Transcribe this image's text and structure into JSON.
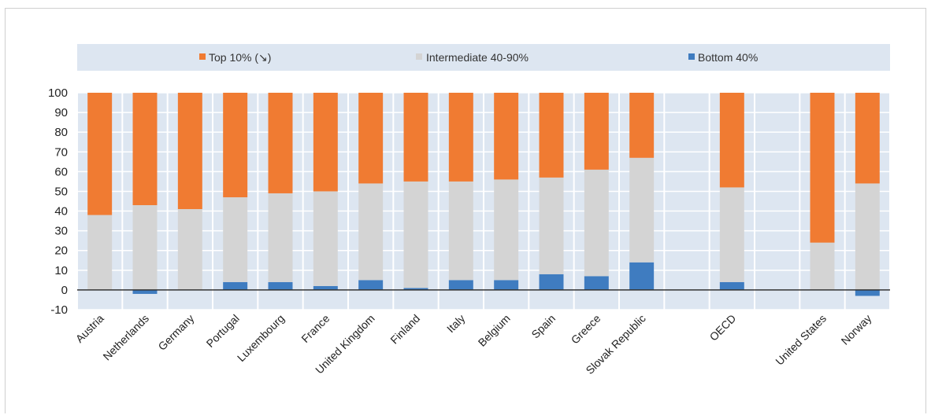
{
  "chart_data": {
    "type": "bar",
    "stacked": true,
    "categories": [
      "Austria",
      "Netherlands",
      "Germany",
      "Portugal",
      "Luxembourg",
      "France",
      "United Kingdom",
      "Finland",
      "Italy",
      "Belgium",
      "Spain",
      "Greece",
      "Slovak Republic",
      "",
      "OECD",
      "",
      "United States",
      "Norway"
    ],
    "series": [
      {
        "name": "Top 10% (↘)",
        "color": "#f07b32",
        "values": [
          62,
          57,
          59,
          53,
          51,
          50,
          46,
          45,
          45,
          44,
          43,
          39,
          33,
          null,
          48,
          null,
          76,
          46
        ]
      },
      {
        "name": "Intermediate 40-90%",
        "color": "#d4d4d4",
        "values": [
          38,
          43,
          41,
          43,
          45,
          48,
          49,
          54,
          50,
          51,
          49,
          54,
          53,
          null,
          48,
          null,
          24,
          54
        ]
      },
      {
        "name": "Bottom 40%",
        "color": "#3f7cc0",
        "values": [
          0,
          -2,
          0,
          4,
          4,
          2,
          5,
          1,
          5,
          5,
          8,
          7,
          14,
          null,
          4,
          null,
          0,
          -3
        ]
      }
    ],
    "yticks": [
      100,
      90,
      80,
      70,
      60,
      50,
      40,
      30,
      20,
      10,
      0,
      -10
    ],
    "ylim": [
      -10,
      100
    ],
    "legend_position": "top",
    "plot_background": "#dde6f1",
    "grid": true,
    "title": "",
    "xlabel": "",
    "ylabel": ""
  }
}
